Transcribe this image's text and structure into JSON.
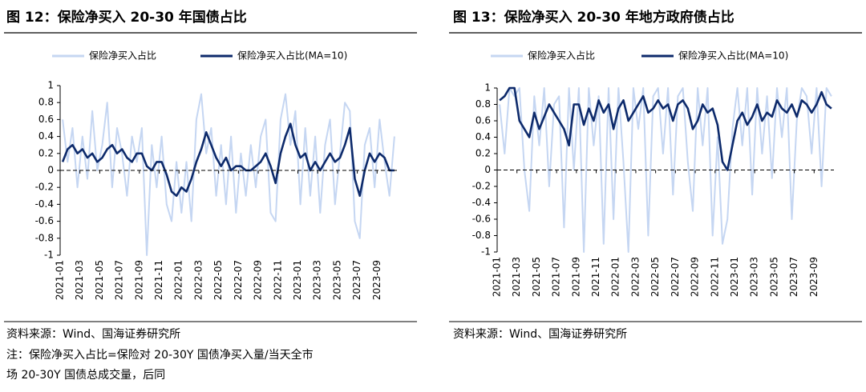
{
  "chart_data": [
    {
      "type": "line",
      "title": "图 12：保险净买入 20-30 年国债占比",
      "categories": [
        "2021-01",
        null,
        null,
        null,
        "2021-03",
        null,
        null,
        null,
        "2021-05",
        null,
        null,
        null,
        "2021-07",
        null,
        null,
        null,
        "2021-09",
        null,
        null,
        null,
        "2021-11",
        null,
        null,
        null,
        "2022-01",
        null,
        null,
        null,
        "2022-03",
        null,
        null,
        null,
        "2022-05",
        null,
        null,
        null,
        "2022-07",
        null,
        null,
        null,
        "2022-09",
        null,
        null,
        null,
        "2022-11",
        null,
        null,
        null,
        "2023-01",
        null,
        null,
        null,
        "2023-03",
        null,
        null,
        null,
        "2023-05",
        null,
        null,
        null,
        "2023-07",
        null,
        null,
        null,
        "2023-09",
        null,
        null,
        null
      ],
      "series": [
        {
          "name": "保险净买入占比",
          "color": "#c5d6f2",
          "values": [
            0.6,
            0.1,
            0.5,
            -0.2,
            0.4,
            -0.1,
            0.7,
            0.0,
            0.3,
            0.8,
            -0.2,
            0.5,
            0.2,
            -0.3,
            0.4,
            0.1,
            0.5,
            -1.0,
            0.3,
            -0.2,
            0.4,
            -0.4,
            -0.6,
            0.1,
            -0.5,
            0.1,
            -0.6,
            0.6,
            0.9,
            0.2,
            0.5,
            -0.3,
            0.3,
            -0.4,
            0.4,
            -0.5,
            0.2,
            -0.3,
            0.3,
            -0.2,
            0.4,
            0.6,
            -0.5,
            -0.6,
            0.6,
            0.9,
            0.3,
            0.7,
            -0.4,
            0.5,
            -0.3,
            0.4,
            -0.5,
            0.3,
            0.6,
            -0.4,
            0.2,
            0.8,
            0.7,
            -0.6,
            -0.8,
            0.3,
            0.5,
            -0.2,
            0.6,
            0.1,
            -0.3,
            0.4
          ]
        },
        {
          "name": "保险净买入占比(MA=10)",
          "color": "#0d2a6b",
          "values": [
            0.1,
            0.25,
            0.3,
            0.2,
            0.25,
            0.15,
            0.2,
            0.1,
            0.15,
            0.25,
            0.3,
            0.2,
            0.25,
            0.15,
            0.1,
            0.2,
            0.2,
            0.05,
            0,
            0.1,
            0.1,
            -0.05,
            -0.25,
            -0.3,
            -0.2,
            -0.25,
            -0.1,
            0.1,
            0.25,
            0.45,
            0.3,
            0.15,
            0.05,
            0.15,
            0,
            0.05,
            0.05,
            0.0,
            0,
            0.05,
            0.1,
            0.2,
            0.05,
            -0.15,
            0.2,
            0.4,
            0.55,
            0.3,
            0.15,
            0.2,
            0,
            0.1,
            0.0,
            0.1,
            0.2,
            0.1,
            0.15,
            0.3,
            0.5,
            -0.1,
            -0.3,
            0.0,
            0.2,
            0.1,
            0.2,
            0.15,
            0.0,
            0.0
          ]
        }
      ],
      "ylim": [
        -1,
        1
      ],
      "yticks": [
        1,
        0.8,
        0.6,
        0.4,
        0.2,
        0,
        -0.2,
        -0.4,
        -0.6,
        -0.8,
        -1
      ]
    },
    {
      "type": "line",
      "title": "图 13：保险净买入 20-30 年地方政府债占比",
      "categories": [
        "2021-01",
        null,
        null,
        null,
        "2021-03",
        null,
        null,
        null,
        "2021-05",
        null,
        null,
        null,
        "2021-07",
        null,
        null,
        null,
        "2021-09",
        null,
        null,
        null,
        "2021-11",
        null,
        null,
        null,
        "2022-01",
        null,
        null,
        null,
        "2022-03",
        null,
        null,
        null,
        "2022-05",
        null,
        null,
        null,
        "2022-07",
        null,
        null,
        null,
        "2022-09",
        null,
        null,
        null,
        "2022-11",
        null,
        null,
        null,
        "2023-01",
        null,
        null,
        null,
        "2023-03",
        null,
        null,
        null,
        "2023-05",
        null,
        null,
        null,
        "2023-07",
        null,
        null,
        null,
        "2023-09",
        null,
        null,
        null
      ],
      "series": [
        {
          "name": "保险净买入占比",
          "color": "#c5d6f2",
          "values": [
            0.8,
            0.2,
            1.0,
            0.9,
            1.0,
            0.0,
            -0.5,
            0.9,
            0.3,
            1.0,
            -0.2,
            0.8,
            0.9,
            -0.7,
            1.0,
            0.0,
            1.0,
            -1.0,
            1.0,
            0.3,
            0.9,
            -0.9,
            1.0,
            -0.6,
            1.0,
            0.1,
            -1.0,
            1.0,
            0.5,
            1.0,
            -0.8,
            0.9,
            1.0,
            0.2,
            1.0,
            -0.3,
            0.9,
            1.0,
            0.1,
            -0.5,
            1.0,
            0.3,
            1.0,
            -0.8,
            0.4,
            -0.9,
            -0.6,
            0.5,
            1.0,
            0.3,
            1.0,
            -0.3,
            1.0,
            0.2,
            0.9,
            -0.1,
            1.0,
            0.4,
            1.0,
            -0.6,
            0.6,
            1.0,
            0.9,
            0.2,
            1.0,
            -0.2,
            1.0,
            0.9
          ]
        },
        {
          "name": "保险净买入占比(MA=10)",
          "color": "#0d2a6b",
          "values": [
            0.85,
            0.9,
            1.0,
            1.0,
            0.6,
            0.5,
            0.4,
            0.7,
            0.5,
            0.65,
            0.8,
            0.7,
            0.6,
            0.5,
            0.3,
            0.8,
            0.8,
            0.55,
            0.75,
            0.6,
            0.85,
            0.7,
            0.8,
            0.5,
            0.75,
            0.85,
            0.6,
            0.7,
            0.8,
            0.9,
            0.7,
            0.75,
            0.85,
            0.75,
            0.8,
            0.6,
            0.8,
            0.85,
            0.75,
            0.5,
            0.6,
            0.8,
            0.7,
            0.75,
            0.55,
            0.1,
            0.0,
            0.3,
            0.6,
            0.7,
            0.55,
            0.65,
            0.8,
            0.6,
            0.7,
            0.65,
            0.85,
            0.75,
            0.7,
            0.8,
            0.65,
            0.85,
            0.8,
            0.7,
            0.8,
            0.95,
            0.8,
            0.75
          ]
        }
      ],
      "ylim": [
        -1,
        1
      ],
      "yticks": [
        1,
        0.8,
        0.6,
        0.4,
        0.2,
        0,
        -0.2,
        -0.4,
        -0.6,
        -0.8,
        -1
      ]
    }
  ],
  "footer": {
    "source_left": "资料来源：Wind、国海证券研究所",
    "note_lines": [
      "注：保险净买入占比=保险对 20-30Y 国债净买入量/当天全市",
      "场 20-30Y 国债总成交量，后同"
    ],
    "source_right": "资料来源：Wind、国海证券研究所"
  }
}
